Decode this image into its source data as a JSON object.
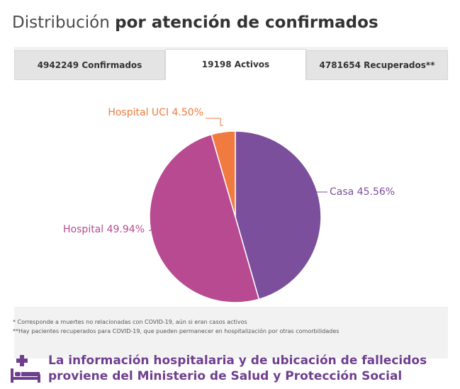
{
  "title": {
    "light": "Distribución",
    "bold": "por atención de confirmados"
  },
  "tabs": [
    {
      "label": "4942249 Confirmados",
      "active": false
    },
    {
      "label": "19198 Activos",
      "active": true
    },
    {
      "label": "4781654 Recuperados**",
      "active": false
    }
  ],
  "chart_data": {
    "type": "pie",
    "title": "",
    "slices": [
      {
        "label": "Casa",
        "value": 45.56,
        "display": "Casa 45.56%",
        "color": "#7b4f9c"
      },
      {
        "label": "Hospital",
        "value": 49.94,
        "display": "Hospital 49.94%",
        "color": "#b84a92"
      },
      {
        "label": "Hospital UCI",
        "value": 4.5,
        "display": "Hospital UCI 4.50%",
        "color": "#f07a3f"
      }
    ]
  },
  "notes": [
    "* Corresponde a muertes no relacionadas con COVID-19, aún si eran casos activos",
    "**Hay pacientes recuperados para COVID-19, que pueden permanecer en hospitalización por otras comorbilidades"
  ],
  "footer": {
    "line1": "La información hospitalaria y de ubicación de fallecidos",
    "line2": "proviene del Ministerio de Salud y Protección Social",
    "icon": "hospital-bed-icon",
    "color": "#6f3f8f"
  }
}
